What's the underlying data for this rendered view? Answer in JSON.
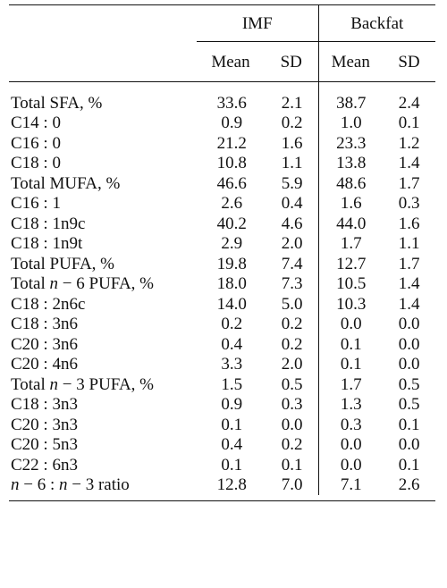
{
  "columns": {
    "groups": [
      "IMF",
      "Backfat"
    ],
    "sub": [
      "Mean",
      "SD",
      "Mean",
      "SD"
    ]
  },
  "rows": [
    {
      "label": "Total SFA, %",
      "values": [
        "33.6",
        "2.1",
        "38.7",
        "2.4"
      ]
    },
    {
      "label": "C14 : 0",
      "values": [
        "0.9",
        "0.2",
        "1.0",
        "0.1"
      ]
    },
    {
      "label": "C16 : 0",
      "values": [
        "21.2",
        "1.6",
        "23.3",
        "1.2"
      ]
    },
    {
      "label": "C18 : 0",
      "values": [
        "10.8",
        "1.1",
        "13.8",
        "1.4"
      ]
    },
    {
      "label": "Total MUFA, %",
      "values": [
        "46.6",
        "5.9",
        "48.6",
        "1.7"
      ]
    },
    {
      "label": "C16 : 1",
      "values": [
        "2.6",
        "0.4",
        "1.6",
        "0.3"
      ]
    },
    {
      "label": "C18 : 1n9c",
      "values": [
        "40.2",
        "4.6",
        "44.0",
        "1.6"
      ]
    },
    {
      "label": "C18 : 1n9t",
      "values": [
        "2.9",
        "2.0",
        "1.7",
        "1.1"
      ]
    },
    {
      "label": "Total PUFA, %",
      "values": [
        "19.8",
        "7.4",
        "12.7",
        "1.7"
      ]
    },
    {
      "label": "Total n − 6 PUFA, %",
      "values": [
        "18.0",
        "7.3",
        "10.5",
        "1.4"
      ]
    },
    {
      "label": "C18 : 2n6c",
      "values": [
        "14.0",
        "5.0",
        "10.3",
        "1.4"
      ]
    },
    {
      "label": "C18 : 3n6",
      "values": [
        "0.2",
        "0.2",
        "0.0",
        "0.0"
      ]
    },
    {
      "label": "C20 : 3n6",
      "values": [
        "0.4",
        "0.2",
        "0.1",
        "0.0"
      ]
    },
    {
      "label": "C20 : 4n6",
      "values": [
        "3.3",
        "2.0",
        "0.1",
        "0.0"
      ]
    },
    {
      "label": "Total n − 3 PUFA, %",
      "values": [
        "1.5",
        "0.5",
        "1.7",
        "0.5"
      ]
    },
    {
      "label": "C18 : 3n3",
      "values": [
        "0.9",
        "0.3",
        "1.3",
        "0.5"
      ]
    },
    {
      "label": "C20 : 3n3",
      "values": [
        "0.1",
        "0.0",
        "0.3",
        "0.1"
      ]
    },
    {
      "label": "C20 : 5n3",
      "values": [
        "0.4",
        "0.2",
        "0.0",
        "0.0"
      ]
    },
    {
      "label": "C22 : 6n3",
      "values": [
        "0.1",
        "0.1",
        "0.0",
        "0.1"
      ]
    },
    {
      "label": "n − 6 : n − 3 ratio",
      "values": [
        "12.8",
        "7.0",
        "7.1",
        "2.6"
      ]
    }
  ]
}
